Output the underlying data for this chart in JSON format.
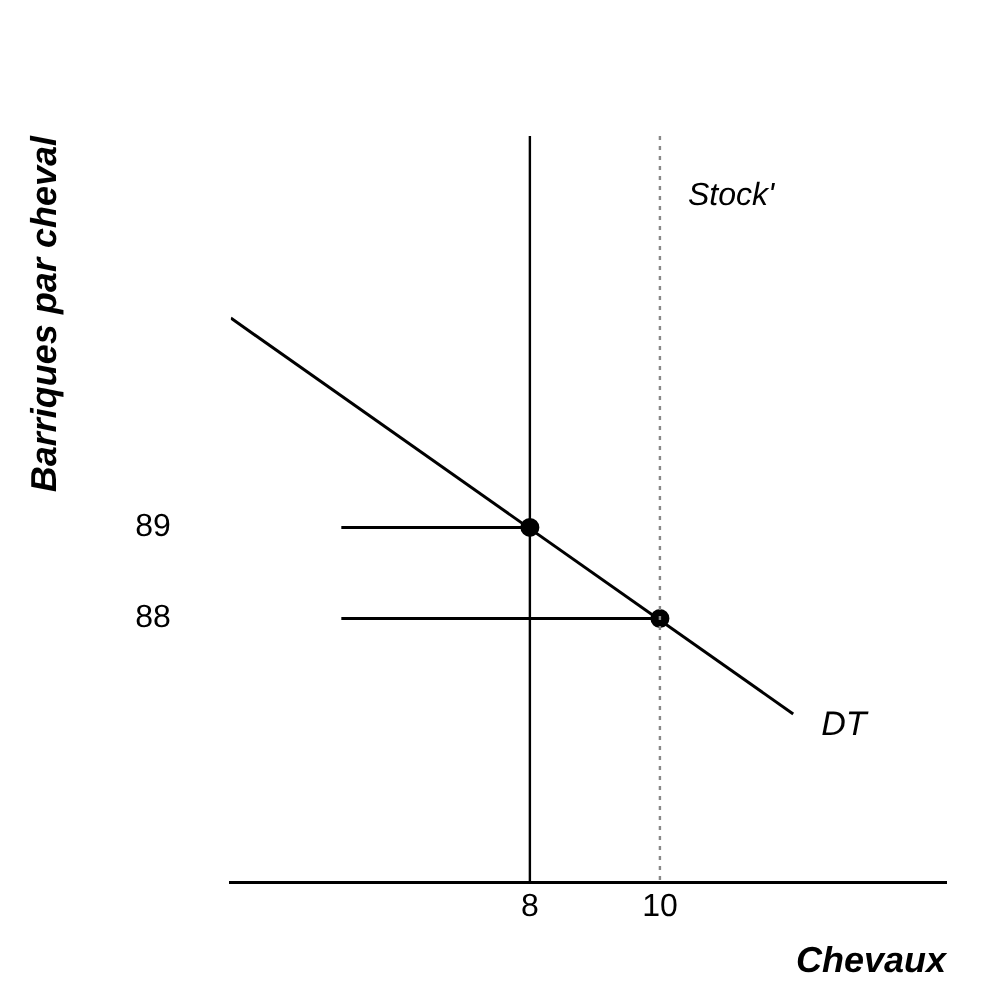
{
  "chart_data": {
    "type": "line",
    "xlabel": "Chevaux",
    "ylabel": "Barriques par cheval",
    "xlim": [
      3.4,
      14.4
    ],
    "ylim": [
      85.1,
      93.3
    ],
    "xticks": [
      8,
      10
    ],
    "yticks": [
      88,
      89
    ],
    "grid": false,
    "legend": false,
    "series": [
      {
        "name": "DT",
        "x": [
          3.4,
          12.05
        ],
        "values": [
          91.3,
          86.95
        ],
        "color": "#000000",
        "marker": "none"
      },
      {
        "x": [
          5.1,
          8
        ],
        "values": [
          89,
          89
        ],
        "color": "#000000",
        "marker": "none"
      },
      {
        "x": [
          5.1,
          10
        ],
        "values": [
          88,
          88
        ],
        "color": "#000000",
        "marker": "none"
      },
      {
        "type": "scatter",
        "x": [
          8,
          10
        ],
        "values": [
          89,
          88
        ],
        "color": "#000000",
        "marker": "circle"
      }
    ],
    "ref_lines": [
      {
        "axis": "x",
        "value": 8,
        "color": "#000000",
        "line_style": "solid"
      },
      {
        "axis": "x",
        "value": 10,
        "label": "Stock'",
        "color": "#888888",
        "line_style": "dotted"
      }
    ]
  }
}
